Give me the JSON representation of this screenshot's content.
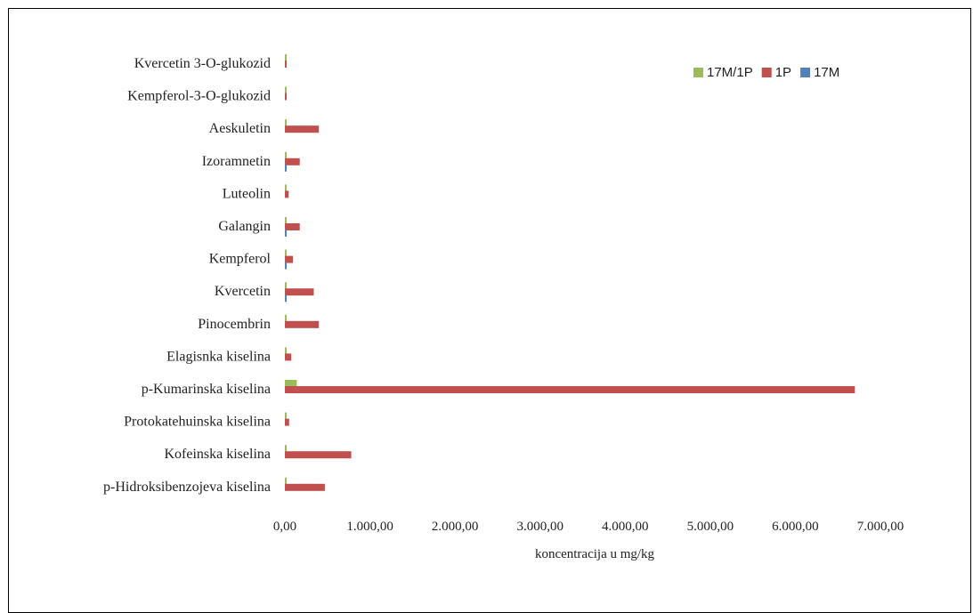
{
  "chart_data": {
    "type": "bar",
    "orientation": "horizontal",
    "categories": [
      "Kvercetin 3-O-glukozid",
      "Kempferol-3-O-glukozid",
      "Aeskuletin",
      "Izoramnetin",
      "Luteolin",
      "Galangin",
      "Kempferol",
      "Kvercetin",
      "Pinocembrin",
      "Elagisnka kiselina",
      "p-Kumarinska kiselina",
      "Protokatehuinska kiselina",
      "Kofeinska kiselina",
      "p-Hidroksibenzojeva kiselina"
    ],
    "series": [
      {
        "name": "17M/1P",
        "color": "#9bbb59",
        "values": [
          4,
          4,
          4,
          3,
          5,
          3,
          3,
          3,
          3,
          3,
          140,
          3,
          4,
          3
        ]
      },
      {
        "name": "1P",
        "color": "#c0504d",
        "values": [
          20,
          20,
          400,
          175,
          45,
          175,
          95,
          340,
          400,
          75,
          6700,
          50,
          780,
          470
        ]
      },
      {
        "name": "17M",
        "color": "#4f81bd",
        "values": [
          0,
          0,
          0,
          20,
          0,
          20,
          20,
          20,
          0,
          0,
          0,
          0,
          0,
          0
        ]
      }
    ],
    "xlabel": "koncentracija u mg/kg",
    "xlim": [
      0,
      7000
    ],
    "xticks": [
      "0,00",
      "1.000,00",
      "2.000,00",
      "3.000,00",
      "4.000,00",
      "5.000,00",
      "6.000,00",
      "7.000,00"
    ],
    "legend_position": "top-right",
    "grid": false
  }
}
